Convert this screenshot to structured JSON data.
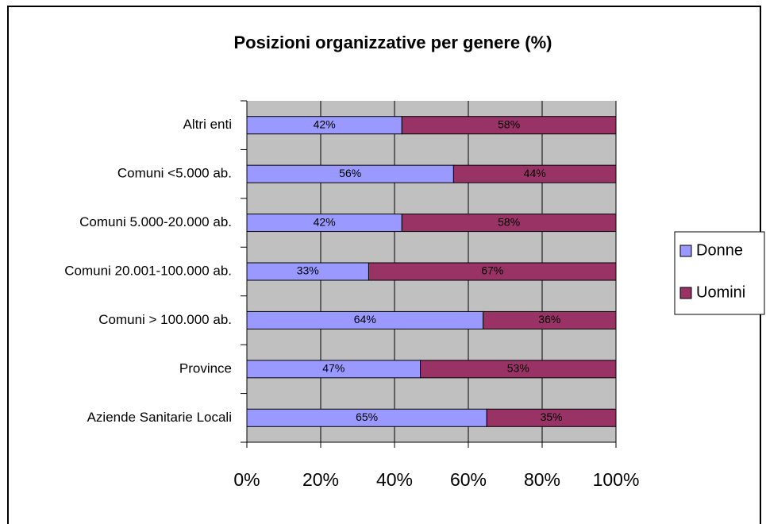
{
  "chart_data": {
    "type": "stacked-bar-horizontal",
    "title": "Posizioni organizzative per genere (%)",
    "categories": [
      "Altri enti",
      "Comuni <5.000 ab.",
      "Comuni 5.000-20.000 ab.",
      "Comuni 20.001-100.000 ab.",
      "Comuni > 100.000 ab.",
      "Province",
      "Aziende Sanitarie Locali"
    ],
    "series": [
      {
        "name": "Donne",
        "color": "#9999ff",
        "values": [
          42,
          56,
          42,
          33,
          64,
          47,
          65
        ],
        "value_labels": [
          "42%",
          "56%",
          "42%",
          "33%",
          "64%",
          "47%",
          "65%"
        ]
      },
      {
        "name": "Uomini",
        "color": "#993366",
        "values": [
          58,
          44,
          58,
          67,
          36,
          53,
          35
        ],
        "value_labels": [
          "58%",
          "44%",
          "58%",
          "67%",
          "36%",
          "53%",
          "35%"
        ]
      }
    ],
    "xlim": [
      0,
      100
    ],
    "xticks": [
      {
        "value": 0,
        "label": "0%"
      },
      {
        "value": 20,
        "label": "20%"
      },
      {
        "value": 40,
        "label": "40%"
      },
      {
        "value": 60,
        "label": "60%"
      },
      {
        "value": 80,
        "label": "80%"
      },
      {
        "value": 100,
        "label": "100%"
      }
    ],
    "grid": true,
    "legend": "right",
    "plot_background": "#c0c0c0"
  }
}
